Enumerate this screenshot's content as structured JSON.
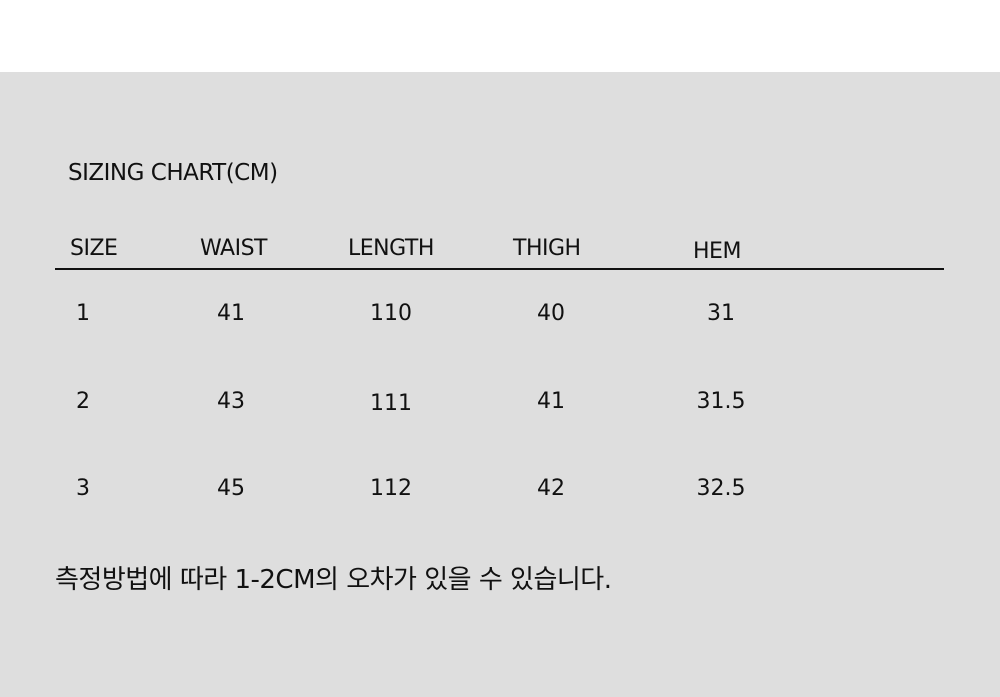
{
  "title": "SIZING CHART(CM)",
  "headers": [
    "SIZE",
    "WAIST",
    "LENGTH",
    "THIGH",
    "HEM"
  ],
  "rows": [
    [
      "1",
      "41",
      "110",
      "40",
      "31"
    ],
    [
      "2",
      "43",
      "111",
      "41",
      "31.5"
    ],
    [
      "3",
      "45",
      "112",
      "42",
      "32.5"
    ]
  ],
  "note": "측정방법에 따라 1-2CM의 오차가 있을 수 있습니다.",
  "colors": {
    "background": "#dedede",
    "text": "#111111"
  }
}
